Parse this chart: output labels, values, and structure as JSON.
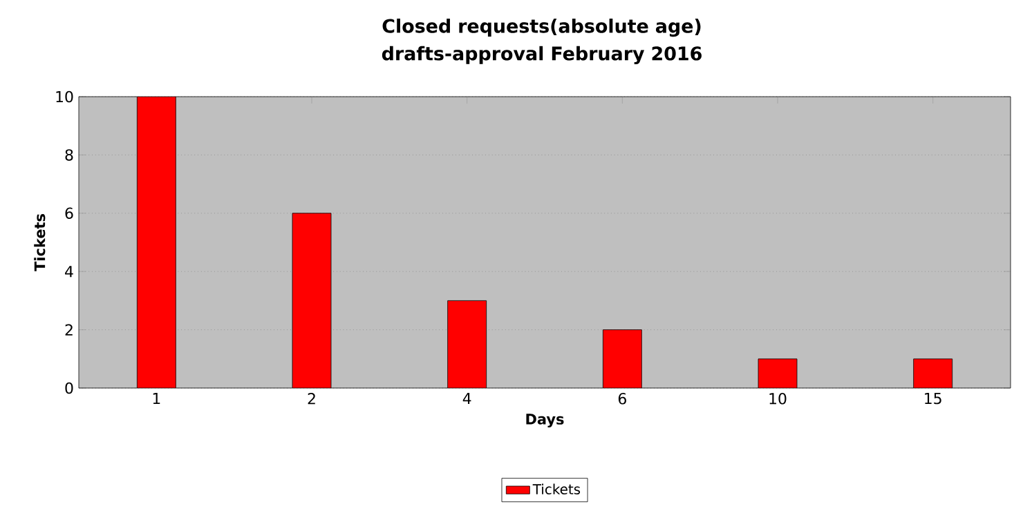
{
  "chart_data": {
    "type": "bar",
    "title": "Closed requests(absolute age)\ndrafts-approval February 2016",
    "xlabel": "Days",
    "ylabel": "Tickets",
    "categories": [
      "1",
      "2",
      "4",
      "6",
      "10",
      "15"
    ],
    "series": [
      {
        "name": "Tickets",
        "color": "#ff0000",
        "values": [
          10,
          6,
          3,
          2,
          1,
          1
        ]
      }
    ],
    "ylim": [
      0,
      10
    ],
    "yticks": [
      0,
      2,
      4,
      6,
      8,
      10
    ],
    "grid": "y",
    "legend": "bottom"
  }
}
